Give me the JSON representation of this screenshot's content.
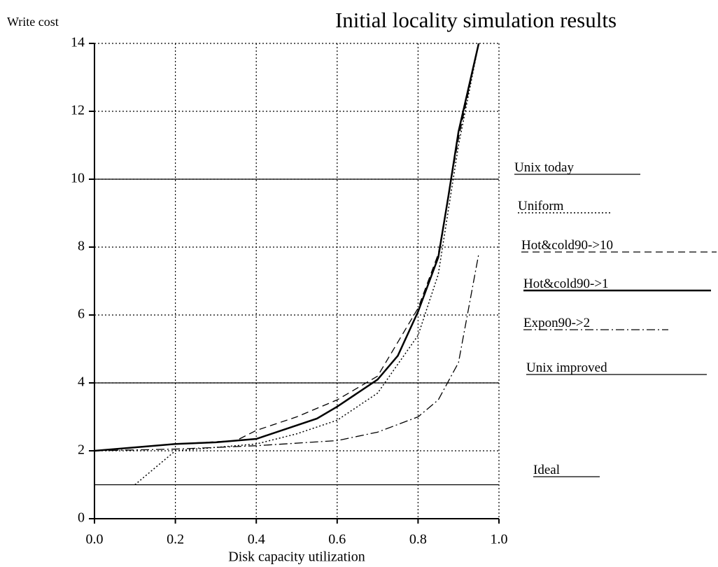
{
  "chart_data": {
    "type": "line",
    "title": "Initial locality simulation results",
    "y_label": "Write cost",
    "x_label": "Disk capacity utilization",
    "xlim": [
      0,
      1
    ],
    "ylim": [
      0,
      14
    ],
    "xticks": [
      {
        "value": 0,
        "label": "0.0"
      },
      {
        "value": 0.2,
        "label": "0.2"
      },
      {
        "value": 0.4,
        "label": "0.4"
      },
      {
        "value": 0.6,
        "label": "0.6"
      },
      {
        "value": 0.8,
        "label": "0.8"
      },
      {
        "value": 1,
        "label": "1.0"
      }
    ],
    "yticks": [
      0,
      2,
      4,
      6,
      8,
      10,
      12,
      14
    ],
    "grid": true,
    "legend": "right",
    "series": [
      {
        "name": "Unix today",
        "color": "#000000",
        "linestyle": "solid",
        "linewidth": 1.3,
        "x": [
          0,
          1
        ],
        "values": [
          10,
          10
        ]
      },
      {
        "name": "Uniform",
        "color": "#000000",
        "linestyle": "dotted",
        "linewidth": 1.5,
        "x": [
          0.1,
          0.2,
          0.4,
          0.5,
          0.6,
          0.7,
          0.8,
          0.85,
          0.9,
          0.95
        ],
        "values": [
          1.0,
          2.0,
          2.2,
          2.5,
          2.9,
          3.7,
          5.4,
          7.2,
          11.0,
          14.0
        ]
      },
      {
        "name": "Hot&cold90->10",
        "color": "#000000",
        "linestyle": "dashed",
        "linewidth": 1.3,
        "x": [
          0,
          0.2,
          0.35,
          0.4,
          0.5,
          0.6,
          0.7,
          0.8,
          0.85,
          0.9,
          0.95
        ],
        "values": [
          2.0,
          2.2,
          2.3,
          2.6,
          3.0,
          3.5,
          4.2,
          6.2,
          7.8,
          11.2,
          14.0
        ]
      },
      {
        "name": "Hot&cold90->1",
        "color": "#000000",
        "linestyle": "solid",
        "linewidth": 2.5,
        "x": [
          0,
          0.1,
          0.2,
          0.3,
          0.4,
          0.55,
          0.6,
          0.7,
          0.75,
          0.8,
          0.85,
          0.875,
          0.9,
          0.95
        ],
        "values": [
          2.0,
          2.1,
          2.2,
          2.25,
          2.35,
          2.95,
          3.3,
          4.1,
          4.8,
          6.1,
          7.7,
          9.5,
          11.4,
          14.0
        ]
      },
      {
        "name": "Expon90->2",
        "color": "#000000",
        "linestyle": "dashdot",
        "linewidth": 1.3,
        "x": [
          0,
          0.2,
          0.4,
          0.6,
          0.7,
          0.8,
          0.85,
          0.9,
          0.95
        ],
        "values": [
          2.0,
          2.05,
          2.15,
          2.3,
          2.55,
          3.0,
          3.5,
          4.6,
          7.8
        ]
      },
      {
        "name": "Unix improved",
        "color": "#000000",
        "linestyle": "solid",
        "linewidth": 1.3,
        "x": [
          0,
          1
        ],
        "values": [
          4,
          4
        ]
      },
      {
        "name": "Ideal",
        "color": "#000000",
        "linestyle": "solid",
        "linewidth": 1.3,
        "x": [
          0,
          1
        ],
        "values": [
          1,
          1
        ]
      }
    ]
  }
}
